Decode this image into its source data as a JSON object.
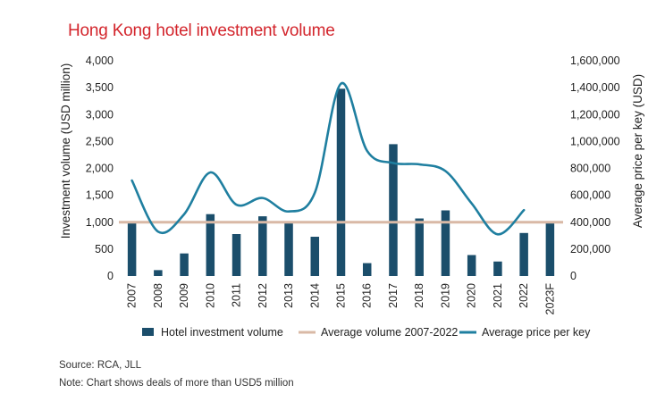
{
  "chart_data": {
    "type": "bar",
    "title": "Hong Kong hotel investment volume",
    "categories": [
      "2007",
      "2008",
      "2009",
      "2010",
      "2011",
      "2012",
      "2013",
      "2014",
      "2015",
      "2016",
      "2017",
      "2018",
      "2019",
      "2020",
      "2021",
      "2022",
      "2023F"
    ],
    "series": [
      {
        "name": "Hotel investment volume",
        "type": "bar",
        "axis": "left",
        "color": "#1b4e6b",
        "values": [
          1000,
          110,
          420,
          1150,
          780,
          1110,
          980,
          730,
          3480,
          240,
          2450,
          1070,
          1220,
          390,
          270,
          800,
          990
        ]
      },
      {
        "name": "Average volume 2007-2022",
        "type": "line",
        "axis": "left",
        "color": "#d9b9a6",
        "values": [
          1000,
          1000,
          1000,
          1000,
          1000,
          1000,
          1000,
          1000,
          1000,
          1000,
          1000,
          1000,
          1000,
          1000,
          1000,
          1000,
          1000
        ]
      },
      {
        "name": "Average price per key",
        "type": "line",
        "axis": "right",
        "color": "#1f7fa0",
        "smooth": true,
        "values": [
          710000,
          330000,
          460000,
          770000,
          530000,
          580000,
          480000,
          620000,
          1430000,
          930000,
          840000,
          830000,
          780000,
          540000,
          310000,
          490000,
          null
        ]
      }
    ],
    "ylabel": "Investment volume (USD million)",
    "ylim": [
      0,
      4000
    ],
    "yticks": [
      "0",
      "500",
      "1,000",
      "1,500",
      "2,000",
      "2,500",
      "3,000",
      "3,500",
      "4,000"
    ],
    "ylabel_right": "Average price per key (USD)",
    "ylim_right": [
      0,
      1600000
    ],
    "yticks_right": [
      "0",
      "200,000",
      "400,000",
      "600,000",
      "800,000",
      "1,000,000",
      "1,200,000",
      "1,400,000",
      "1,600,000"
    ],
    "legend_position": "bottom",
    "grid": false
  },
  "footnotes": {
    "source": "Source: RCA, JLL",
    "note": "Note: Chart shows deals of more than USD5 million"
  }
}
